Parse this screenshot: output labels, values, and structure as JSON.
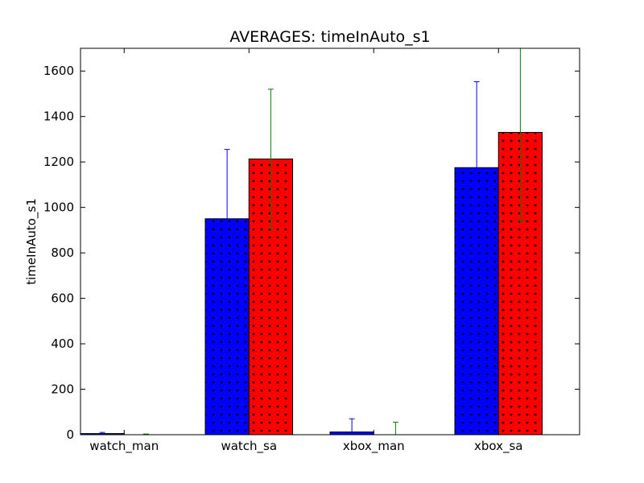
{
  "chart_data": {
    "type": "bar",
    "title": "AVERAGES: timeInAuto_s1",
    "xlabel": "",
    "ylabel": "timeInAuto_s1",
    "categories": [
      "watch_man",
      "watch_sa",
      "xbox_man",
      "xbox_sa"
    ],
    "ylim": [
      0,
      1700
    ],
    "yticks": [
      0,
      200,
      400,
      600,
      800,
      1000,
      1200,
      1400,
      1600
    ],
    "grid": false,
    "series": [
      {
        "color": "#0000ff",
        "error_color": "#0000ff",
        "values": [
          5,
          950,
          12,
          1175
        ],
        "errors": [
          5,
          305,
          58,
          378
        ]
      },
      {
        "color": "#ff0000",
        "error_color": "#008000",
        "values": [
          0,
          1213,
          0,
          1330
        ],
        "errors": [
          3,
          307,
          55,
          390
        ]
      }
    ]
  }
}
